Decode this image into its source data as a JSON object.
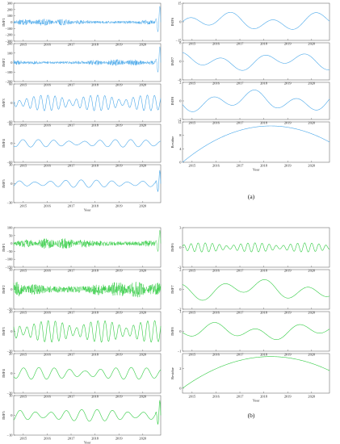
{
  "figure": {
    "captions": [
      "(a)",
      "(b)"
    ],
    "xlabel": "Year",
    "year_ticks": [
      "2015",
      "2016",
      "2017",
      "2018",
      "2019",
      "2020"
    ],
    "colors": {
      "a": "#4aa8ea",
      "b": "#33cc44"
    }
  },
  "chart_data": [
    {
      "group": "a",
      "type": "line",
      "ylabel": "IMF1",
      "xlim": [
        2014.6,
        2020.75
      ],
      "ytick_labels": [
        "300",
        "200",
        "100",
        "0",
        "−100",
        "−200",
        "−300"
      ],
      "ylim": [
        -300,
        300
      ],
      "pattern": "noise",
      "amplitude": 55,
      "end_spike": 300,
      "xlabel": ""
    },
    {
      "group": "a",
      "type": "line",
      "ylabel": "IMF2",
      "xlim": [
        2014.6,
        2020.75
      ],
      "ytick_labels": [
        "200",
        "100",
        "0",
        "−100",
        "−200"
      ],
      "ylim": [
        -200,
        200
      ],
      "pattern": "noise",
      "amplitude": 35,
      "end_spike": 200,
      "xlabel": ""
    },
    {
      "group": "a",
      "type": "line",
      "ylabel": "IMF3",
      "xlim": [
        2014.6,
        2020.75
      ],
      "ytick_labels": [
        "60",
        "0",
        "−60"
      ],
      "ylim": [
        -60,
        60
      ],
      "pattern": "osc",
      "amplitude": 25,
      "xlabel": ""
    },
    {
      "group": "a",
      "type": "line",
      "ylabel": "IMF4",
      "xlim": [
        2014.6,
        2020.75
      ],
      "ytick_labels": [
        "60",
        "0",
        "−60"
      ],
      "ylim": [
        -60,
        60
      ],
      "pattern": "wave",
      "amplitude": 12,
      "xlabel": ""
    },
    {
      "group": "a",
      "type": "line",
      "ylabel": "IMF5",
      "xlim": [
        2014.6,
        2020.75
      ],
      "ytick_labels": [
        "30",
        "0",
        "−30"
      ],
      "ylim": [
        -30,
        30
      ],
      "pattern": "wave",
      "amplitude": 6,
      "end_spike": 25,
      "xlabel": "Year"
    },
    {
      "group": "a",
      "type": "line",
      "ylabel": "IMF6",
      "xlim": [
        2014.6,
        2020.75
      ],
      "ytick_labels": [
        "15",
        "0",
        "−15"
      ],
      "ylim": [
        -15,
        15
      ],
      "pattern": "slow",
      "amplitude": 8,
      "xlabel": ""
    },
    {
      "group": "a",
      "type": "line",
      "ylabel": "IMF7",
      "xlim": [
        2014.6,
        2020.75
      ],
      "ytick_labels": [
        "8",
        "0",
        "−8"
      ],
      "ylim": [
        -8,
        8
      ],
      "pattern": "slow",
      "amplitude": 4,
      "xlabel": ""
    },
    {
      "group": "a",
      "type": "line",
      "ylabel": "IMF8",
      "xlim": [
        2014.6,
        2020.75
      ],
      "ytick_labels": [
        "2",
        "0",
        "−2"
      ],
      "ylim": [
        -2,
        2
      ],
      "pattern": "slow",
      "amplitude": 1.2,
      "xlabel": ""
    },
    {
      "group": "a",
      "type": "line",
      "ylabel": "Residue",
      "xlim": [
        2014.6,
        2020.75
      ],
      "ytick_labels": [
        "12",
        "8",
        "4",
        "0"
      ],
      "ylim": [
        0,
        12
      ],
      "pattern": "residue",
      "peak": 10.8,
      "xlabel": "Year"
    },
    {
      "group": "b",
      "type": "line",
      "ylabel": "IMF1",
      "xlim": [
        2014.6,
        2020.75
      ],
      "ytick_labels": [
        "100",
        "50",
        "0",
        "−50",
        "−100",
        "−150"
      ],
      "ylim": [
        -150,
        100
      ],
      "pattern": "noise",
      "amplitude": 35,
      "end_spike": 100,
      "xlabel": ""
    },
    {
      "group": "b",
      "type": "line",
      "ylabel": "IMF2",
      "xlim": [
        2014.6,
        2020.75
      ],
      "ytick_labels": [
        "50",
        "0",
        "−50"
      ],
      "ylim": [
        -50,
        50
      ],
      "pattern": "noise",
      "amplitude": 22,
      "xlabel": ""
    },
    {
      "group": "b",
      "type": "line",
      "ylabel": "IMF3",
      "xlim": [
        2014.6,
        2020.75
      ],
      "ytick_labels": [
        "20",
        "0",
        "−20"
      ],
      "ylim": [
        -20,
        20
      ],
      "pattern": "osc",
      "amplitude": 11,
      "xlabel": ""
    },
    {
      "group": "b",
      "type": "line",
      "ylabel": "IMF4",
      "xlim": [
        2014.6,
        2020.75
      ],
      "ytick_labels": [
        "20",
        "0",
        "−20"
      ],
      "ylim": [
        -20,
        20
      ],
      "pattern": "wave",
      "amplitude": 6,
      "xlabel": ""
    },
    {
      "group": "b",
      "type": "line",
      "ylabel": "IMF5",
      "xlim": [
        2014.6,
        2020.75
      ],
      "ytick_labels": [
        "10",
        "0",
        "−10"
      ],
      "ylim": [
        -10,
        10
      ],
      "pattern": "wave",
      "amplitude": 3,
      "end_spike": 9,
      "xlabel": "Year"
    },
    {
      "group": "b",
      "type": "line",
      "ylabel": "IMF6",
      "xlim": [
        2014.6,
        2020.75
      ],
      "ytick_labels": [
        "3",
        "0",
        "−3"
      ],
      "ylim": [
        -3,
        3
      ],
      "pattern": "osc",
      "amplitude": 0.7,
      "xlabel": ""
    },
    {
      "group": "b",
      "type": "line",
      "ylabel": "IMF7",
      "xlim": [
        2014.6,
        2020.75
      ],
      "ytick_labels": [
        "2",
        "0",
        "−2"
      ],
      "ylim": [
        -2,
        2
      ],
      "pattern": "slow",
      "amplitude": 1.1,
      "xlabel": ""
    },
    {
      "group": "b",
      "type": "line",
      "ylabel": "IMF8",
      "xlim": [
        2014.6,
        2020.75
      ],
      "ytick_labels": [
        "1",
        "0",
        "−1"
      ],
      "ylim": [
        -1,
        1
      ],
      "pattern": "slow",
      "amplitude": 0.45,
      "xlabel": ""
    },
    {
      "group": "b",
      "type": "line",
      "ylabel": "Residue",
      "xlim": [
        2014.6,
        2020.75
      ],
      "ytick_labels": [
        "2",
        "0"
      ],
      "ylim": [
        -0.5,
        3.5
      ],
      "pattern": "residue",
      "peak": 3.2,
      "xlabel": "Year"
    }
  ]
}
